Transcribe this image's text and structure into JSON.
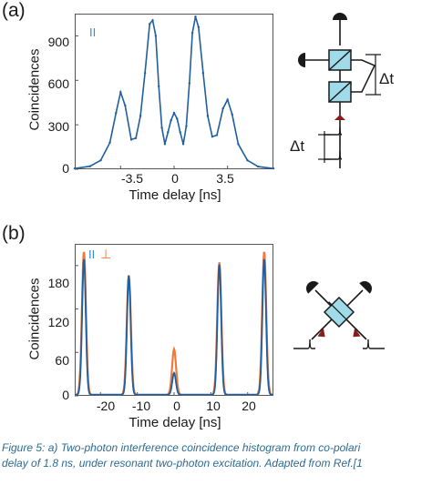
{
  "panel_a": {
    "letter": "(a)",
    "legend_symbol": "II",
    "ylabel": "Coincidences",
    "xlabel": "Time delay [ns]",
    "yticks": [
      "0",
      "300",
      "600",
      "900"
    ],
    "xticks": [
      "-3.5",
      "0",
      "3.5"
    ],
    "delay_label_top": "Δt",
    "delay_label_bottom": "Δt"
  },
  "panel_b": {
    "letter": "(b)",
    "legend_parallel": "II",
    "legend_perp": "⊥",
    "ylabel": "Coincidences",
    "xlabel": "Time delay [ns]",
    "yticks": [
      "0",
      "60",
      "120",
      "180"
    ],
    "xticks": [
      "-20",
      "-10",
      "0",
      "10",
      "20"
    ]
  },
  "caption": {
    "line1": "Figure 5: a) Two-photon interference coincidence histogram from co-polari",
    "line2": "delay of 1.8 ns, under resonant two-photon excitation. Adapted from Ref.[1"
  },
  "colors": {
    "blue": "#1f5fa0",
    "orange": "#f07a3a",
    "splitter": "#9fdbe8",
    "dark_red": "#8b1a1a"
  },
  "chart_data": [
    {
      "type": "line",
      "title": "",
      "xlabel": "Time delay [ns]",
      "ylabel": "Coincidences",
      "xlim": [
        -6.5,
        6.5
      ],
      "ylim": [
        0,
        1050
      ],
      "series": [
        {
          "name": "II",
          "x": [
            -6.5,
            -5.5,
            -4.8,
            -4.2,
            -3.8,
            -3.5,
            -3.2,
            -2.8,
            -2.5,
            -2.2,
            -1.9,
            -1.6,
            -1.4,
            -1.2,
            -1.0,
            -0.8,
            -0.6,
            -0.4,
            -0.2,
            0.0,
            0.2,
            0.4,
            0.6,
            0.8,
            1.0,
            1.2,
            1.4,
            1.6,
            1.9,
            2.2,
            2.5,
            2.8,
            3.2,
            3.5,
            3.8,
            4.2,
            4.8,
            5.5,
            6.5
          ],
          "y": [
            5,
            20,
            60,
            180,
            380,
            520,
            430,
            200,
            210,
            360,
            650,
            980,
            1005,
            900,
            560,
            280,
            170,
            250,
            330,
            380,
            340,
            250,
            170,
            290,
            580,
            920,
            1030,
            960,
            650,
            360,
            220,
            230,
            410,
            470,
            370,
            170,
            60,
            18,
            5
          ]
        }
      ]
    },
    {
      "type": "line",
      "title": "",
      "xlabel": "Time delay [ns]",
      "ylabel": "Coincidences",
      "xlim": [
        -27,
        27
      ],
      "ylim": [
        0,
        210
      ],
      "series": [
        {
          "name": "II",
          "peaks": [
            {
              "x": -24.5,
              "y": 188
            },
            {
              "x": -12.3,
              "y": 165
            },
            {
              "x": 0,
              "y": 30
            },
            {
              "x": 12.3,
              "y": 180
            },
            {
              "x": 24.5,
              "y": 188
            }
          ]
        },
        {
          "name": "⊥",
          "peaks": [
            {
              "x": -24.5,
              "y": 198
            },
            {
              "x": -12.3,
              "y": 165
            },
            {
              "x": 0,
              "y": 63
            },
            {
              "x": 12.3,
              "y": 183
            },
            {
              "x": 24.5,
              "y": 198
            }
          ]
        }
      ]
    }
  ]
}
